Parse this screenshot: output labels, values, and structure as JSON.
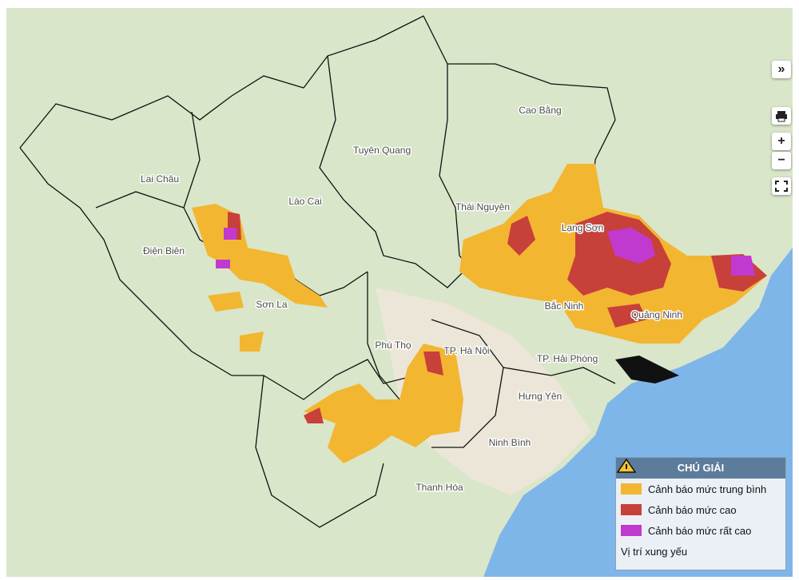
{
  "map": {
    "labels": [
      "Cao Bằng",
      "Tuyên Quang",
      "Lai Châu",
      "Lào Cai",
      "Thái Nguyên",
      "Lạng Sơn",
      "Điện Biên",
      "Sơn La",
      "Bắc Ninh",
      "Quảng Ninh",
      "Phú Thọ",
      "TP. Hà Nội",
      "TP. Hải Phòng",
      "Hưng Yên",
      "Ninh Bình",
      "Thanh Hóa"
    ]
  },
  "legend": {
    "title": "CHÚ GIẢI",
    "items": [
      "Cảnh báo mức trung bình",
      "Cảnh báo mức cao",
      "Cảnh báo mức rất cao",
      "Vị trí xung yếu"
    ]
  },
  "controls": {
    "expand": "»",
    "zoom_in": "+",
    "zoom_out": "−"
  }
}
